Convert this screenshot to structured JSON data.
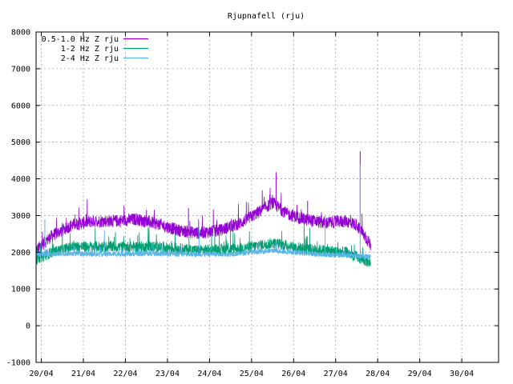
{
  "chart_data": {
    "type": "line",
    "title": "Rjupnafell (rju)",
    "xlabel": "",
    "ylabel": "",
    "ylim": [
      -1000,
      8000
    ],
    "yticks": [
      -1000,
      0,
      1000,
      2000,
      3000,
      4000,
      5000,
      6000,
      7000,
      8000
    ],
    "xlim": [
      "2024-04-19T21:00",
      "2024-04-30T21:00"
    ],
    "xticks": [
      "20/04",
      "21/04",
      "22/04",
      "23/04",
      "24/04",
      "25/04",
      "26/04",
      "27/04",
      "28/04",
      "29/04",
      "30/04"
    ],
    "grid": true,
    "legend_position": "top-left",
    "data_end": "2024-04-27T20:00",
    "series": [
      {
        "name": "0.5-1.0 Hz Z rju",
        "color": "#9400d3",
        "points": [
          [
            "2024-04-19T21:00",
            2050
          ],
          [
            "2024-04-20T06:00",
            2450
          ],
          [
            "2024-04-20T18:00",
            2750
          ],
          [
            "2024-04-21T06:00",
            2850
          ],
          [
            "2024-04-21T18:00",
            2850
          ],
          [
            "2024-04-22T06:00",
            2900
          ],
          [
            "2024-04-22T18:00",
            2780
          ],
          [
            "2024-04-23T06:00",
            2600
          ],
          [
            "2024-04-23T18:00",
            2520
          ],
          [
            "2024-04-24T06:00",
            2600
          ],
          [
            "2024-04-24T18:00",
            2800
          ],
          [
            "2024-04-25T06:00",
            3150
          ],
          [
            "2024-04-25T12:00",
            3350
          ],
          [
            "2024-04-25T20:00",
            3050
          ],
          [
            "2024-04-26T06:00",
            2900
          ],
          [
            "2024-04-26T18:00",
            2800
          ],
          [
            "2024-04-27T06:00",
            2850
          ],
          [
            "2024-04-27T12:00",
            2750
          ],
          [
            "2024-04-27T20:00",
            2200
          ]
        ],
        "spikes": [
          [
            "2024-04-22T12:00",
            3150
          ],
          [
            "2024-04-23T12:00",
            3200
          ],
          [
            "2024-04-25T14:00",
            4180
          ],
          [
            "2024-04-26T08:00",
            3400
          ],
          [
            "2024-04-27T14:00",
            4750
          ]
        ]
      },
      {
        "name": "1-2 Hz Z rju",
        "color": "#009e73",
        "points": [
          [
            "2024-04-19T21:00",
            1800
          ],
          [
            "2024-04-20T06:00",
            2000
          ],
          [
            "2024-04-20T18:00",
            2150
          ],
          [
            "2024-04-21T18:00",
            2150
          ],
          [
            "2024-04-22T18:00",
            2150
          ],
          [
            "2024-04-23T18:00",
            2050
          ],
          [
            "2024-04-24T18:00",
            2100
          ],
          [
            "2024-04-25T12:00",
            2250
          ],
          [
            "2024-04-26T06:00",
            2100
          ],
          [
            "2024-04-26T18:00",
            2050
          ],
          [
            "2024-04-27T06:00",
            2000
          ],
          [
            "2024-04-27T20:00",
            1700
          ]
        ],
        "spikes": [
          [
            "2024-04-20T12:00",
            2800
          ],
          [
            "2024-04-24T12:00",
            2850
          ],
          [
            "2024-04-26T06:00",
            2900
          ]
        ]
      },
      {
        "name": "2-4 Hz Z rju",
        "color": "#56b4e9",
        "points": [
          [
            "2024-04-19T21:00",
            1950
          ],
          [
            "2024-04-20T12:00",
            1960
          ],
          [
            "2024-04-21T12:00",
            1950
          ],
          [
            "2024-04-22T12:00",
            1960
          ],
          [
            "2024-04-23T12:00",
            1950
          ],
          [
            "2024-04-24T12:00",
            1950
          ],
          [
            "2024-04-25T12:00",
            2050
          ],
          [
            "2024-04-26T12:00",
            1950
          ],
          [
            "2024-04-27T12:00",
            1900
          ],
          [
            "2024-04-27T20:00",
            1880
          ]
        ],
        "spikes": [
          [
            "2024-04-20T02:00",
            2900
          ],
          [
            "2024-04-21T12:00",
            2600
          ],
          [
            "2024-04-23T18:00",
            2700
          ],
          [
            "2024-04-26T18:00",
            3000
          ],
          [
            "2024-04-27T14:00",
            4400
          ]
        ]
      }
    ]
  }
}
